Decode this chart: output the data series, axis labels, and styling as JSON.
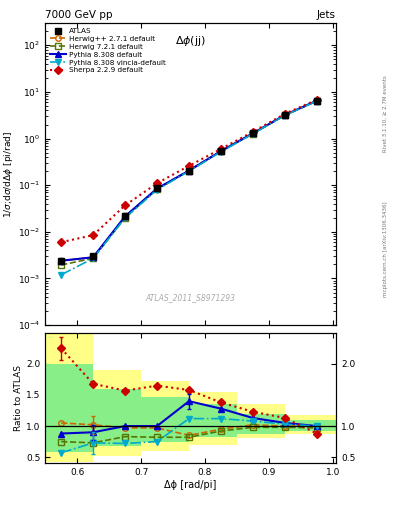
{
  "title_top": "7000 GeV pp",
  "title_top_right": "Jets",
  "annotation": "Δϕ(jj)",
  "ref_label": "ATLAS_2011_S8971293",
  "ylabel_main": "1/σ;dσ/dΔϕ [pi/rad]",
  "ylabel_ratio": "Ratio to ATLAS",
  "xlabel": "Δϕ [rad/pi]",
  "right_label_top": "Rivet 3.1.10, ≥ 2.7M events",
  "right_label_bot": "mcplots.cern.ch [arXiv:1306.3436]",
  "x_data": [
    0.575,
    0.625,
    0.675,
    0.725,
    0.775,
    0.825,
    0.875,
    0.925,
    0.975
  ],
  "atlas_y": [
    0.0024,
    0.003,
    0.022,
    0.085,
    0.2,
    0.54,
    1.3,
    3.2,
    6.5
  ],
  "atlas_yerr": [
    0.0003,
    0.0004,
    0.003,
    0.008,
    0.02,
    0.05,
    0.1,
    0.2,
    0.5
  ],
  "herwig271_y": [
    0.0024,
    0.00285,
    0.021,
    0.083,
    0.21,
    0.54,
    1.3,
    3.2,
    6.5
  ],
  "herwig721_y": [
    0.00195,
    0.0027,
    0.02,
    0.082,
    0.205,
    0.53,
    1.28,
    3.15,
    6.4
  ],
  "pythia8308_y": [
    0.0024,
    0.00285,
    0.0215,
    0.085,
    0.205,
    0.54,
    1.3,
    3.2,
    6.5
  ],
  "pythia8308v_y": [
    0.0012,
    0.0027,
    0.02,
    0.08,
    0.2,
    0.52,
    1.27,
    3.15,
    6.4
  ],
  "sherpa229_y": [
    0.006,
    0.0085,
    0.037,
    0.11,
    0.26,
    0.6,
    1.4,
    3.4,
    6.8
  ],
  "herwig271_ratio": [
    1.05,
    1.02,
    0.97,
    0.97,
    0.85,
    0.95,
    1.02,
    1.0,
    1.0
  ],
  "herwig721_ratio": [
    0.75,
    0.73,
    0.83,
    0.82,
    0.82,
    0.92,
    0.98,
    0.98,
    0.97
  ],
  "pythia8308_ratio": [
    0.88,
    0.9,
    1.0,
    1.0,
    1.4,
    1.28,
    1.13,
    1.05,
    1.0
  ],
  "pythia8308v_ratio": [
    0.57,
    0.73,
    0.72,
    0.75,
    1.12,
    1.12,
    1.08,
    1.03,
    1.0
  ],
  "sherpa229_ratio": [
    2.25,
    1.68,
    1.57,
    1.65,
    1.58,
    1.38,
    1.23,
    1.13,
    0.88
  ],
  "yellow_bands_x": [
    [
      0.55,
      0.625
    ],
    [
      0.625,
      0.7
    ],
    [
      0.7,
      0.775
    ],
    [
      0.775,
      0.85
    ],
    [
      0.85,
      0.925
    ],
    [
      0.925,
      1.005
    ]
  ],
  "yellow_low": [
    0.42,
    0.52,
    0.6,
    0.7,
    0.8,
    0.87
  ],
  "yellow_high": [
    2.5,
    1.9,
    1.72,
    1.55,
    1.35,
    1.18
  ],
  "green_bands_x": [
    [
      0.55,
      0.625
    ],
    [
      0.625,
      0.7
    ],
    [
      0.7,
      0.775
    ],
    [
      0.775,
      0.85
    ],
    [
      0.85,
      0.925
    ],
    [
      0.925,
      1.005
    ]
  ],
  "green_low": [
    0.58,
    0.68,
    0.74,
    0.82,
    0.88,
    0.92
  ],
  "green_high": [
    2.0,
    1.6,
    1.46,
    1.35,
    1.2,
    1.1
  ],
  "xlim": [
    0.55,
    1.005
  ],
  "ylim_main": [
    0.0001,
    300
  ],
  "ylim_ratio": [
    0.4,
    2.5
  ],
  "color_atlas": "#000000",
  "color_herwig271": "#cc6600",
  "color_herwig721": "#557700",
  "color_pythia8308": "#0000cc",
  "color_pythia8308v": "#00aacc",
  "color_sherpa229": "#cc0000",
  "color_yellow": "#ffff88",
  "color_green": "#88ee88",
  "legend_entries": [
    "ATLAS",
    "Herwig++ 2.7.1 default",
    "Herwig 7.2.1 default",
    "Pythia 8.308 default",
    "Pythia 8.308 vincia-default",
    "Sherpa 2.2.9 default"
  ],
  "xticks": [
    0.6,
    0.7,
    0.8,
    0.9,
    1.0
  ],
  "yticks_ratio": [
    0.5,
    1.0,
    1.5,
    2.0
  ]
}
